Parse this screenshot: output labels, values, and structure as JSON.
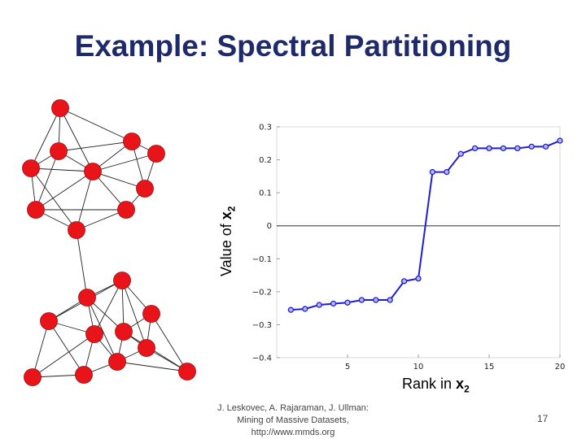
{
  "slide": {
    "title": "Example: Spectral Partitioning",
    "footer_lines": [
      "J. Leskovec, A. Rajaraman, J. Ullman:",
      "Mining of Massive Datasets,",
      "http://www.mmds.org"
    ],
    "page_number": "17"
  },
  "colors": {
    "title": "#1f2a6b",
    "node": "#e8141a",
    "series": "#1f1fd0",
    "zero_line": "#555555"
  },
  "chart_data": {
    "type": "line",
    "ylabel": {
      "text": "Value of ",
      "var": "x",
      "sub": "2"
    },
    "xlabel": {
      "text": "Rank in ",
      "var": "x",
      "sub": "2"
    },
    "xlim": [
      0,
      20
    ],
    "ylim": [
      -0.4,
      0.3
    ],
    "xticks": [
      5,
      10,
      15,
      20
    ],
    "yticks": [
      -0.4,
      -0.3,
      -0.2,
      -0.1,
      0,
      0.1,
      0.2,
      0.3
    ],
    "ytick_labels": [
      "−0.4",
      "−0.3",
      "−0.2",
      "−0.1",
      "0",
      "0.1",
      "0.2",
      "0.3"
    ],
    "xtick_labels": [
      "5",
      "10",
      "15",
      "20"
    ],
    "series": [
      {
        "x": [
          1,
          2,
          3,
          4,
          5,
          6,
          7,
          8,
          9,
          10,
          11,
          12,
          13,
          14,
          15,
          16,
          17,
          18,
          19,
          20
        ],
        "values": [
          -0.255,
          -0.252,
          -0.24,
          -0.236,
          -0.233,
          -0.225,
          -0.225,
          -0.225,
          -0.168,
          -0.16,
          0.163,
          0.163,
          0.218,
          0.235,
          0.235,
          0.235,
          0.235,
          0.24,
          0.24,
          0.258
        ]
      }
    ]
  }
}
